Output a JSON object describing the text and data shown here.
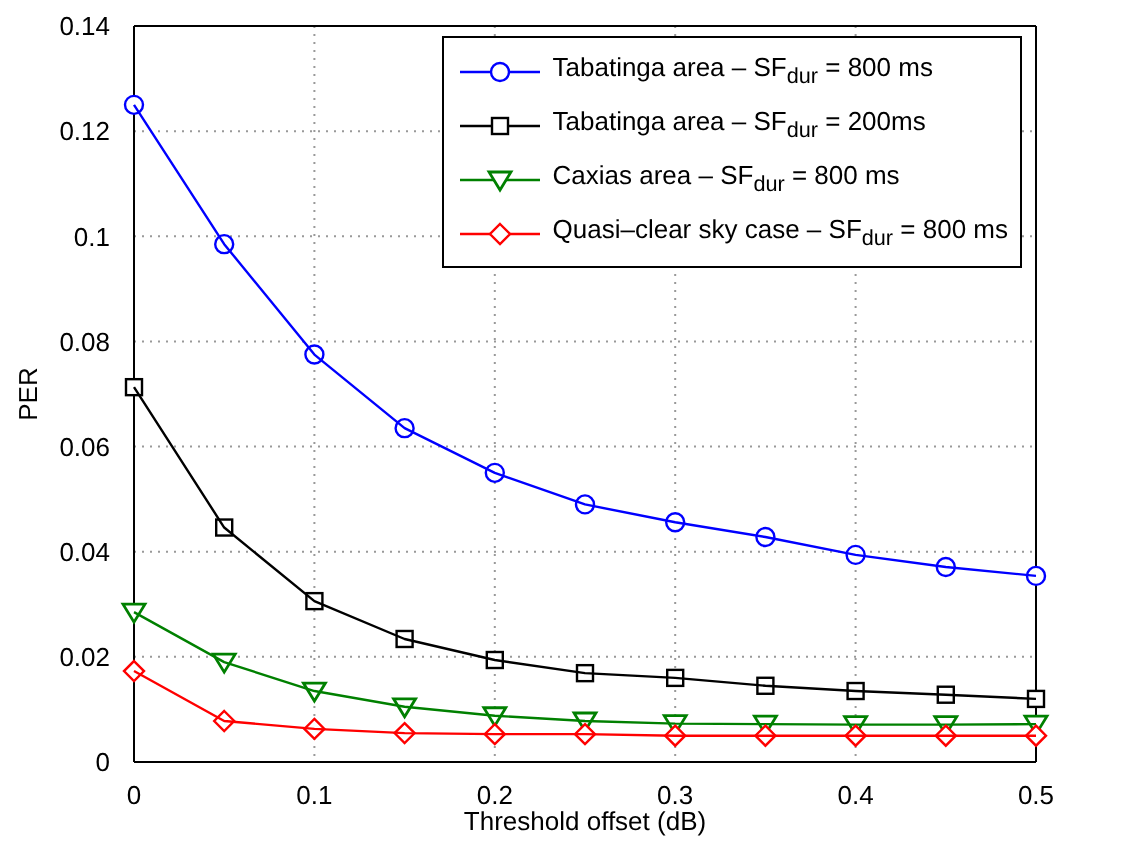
{
  "chart_data": {
    "type": "line",
    "xlabel": "Threshold offset (dB)",
    "ylabel": "PER",
    "x": [
      0,
      0.05,
      0.1,
      0.15,
      0.2,
      0.25,
      0.3,
      0.35,
      0.4,
      0.45,
      0.5
    ],
    "series": [
      {
        "name": "Tabatinga area – SF$_{dur}$ = 800 ms",
        "color": "#0000ff",
        "marker": "circle",
        "values": [
          0.125,
          0.0985,
          0.0775,
          0.0635,
          0.055,
          0.049,
          0.0456,
          0.0428,
          0.0394,
          0.0371,
          0.0354
        ]
      },
      {
        "name": "Tabatinga area – SF$_{dur}$ = 200ms",
        "color": "#000000",
        "marker": "square",
        "values": [
          0.0713,
          0.0446,
          0.0306,
          0.0234,
          0.0194,
          0.0169,
          0.016,
          0.0145,
          0.0135,
          0.0128,
          0.012
        ]
      },
      {
        "name": "Caxias area –  SF$_{dur}$ = 800 ms",
        "color": "#008000",
        "marker": "triangle",
        "values": [
          0.0285,
          0.019,
          0.0135,
          0.0105,
          0.0088,
          0.0078,
          0.0073,
          0.0072,
          0.0071,
          0.0071,
          0.0072
        ]
      },
      {
        "name": "Quasi–clear sky case – SF$_{dur}$ = 800 ms",
        "color": "#ff0000",
        "marker": "diamond",
        "values": [
          0.0173,
          0.0078,
          0.0063,
          0.0055,
          0.0053,
          0.0053,
          0.005,
          0.005,
          0.005,
          0.005,
          0.005
        ]
      }
    ],
    "xlim": [
      0,
      0.5
    ],
    "xticks": [
      0,
      0.1,
      0.2,
      0.3,
      0.4,
      0.5
    ],
    "ylim": [
      0,
      0.14
    ],
    "yticks": [
      0,
      0.02,
      0.04,
      0.06,
      0.08,
      0.1,
      0.12,
      0.14
    ],
    "grid": true,
    "line_style": "solid",
    "legend": "top right"
  }
}
